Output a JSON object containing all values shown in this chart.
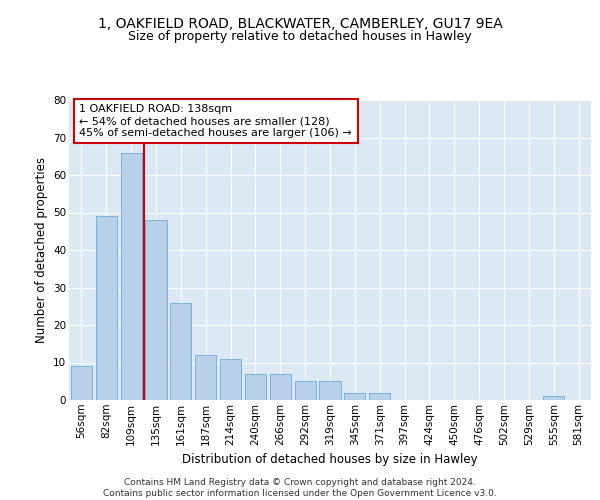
{
  "title_line1": "1, OAKFIELD ROAD, BLACKWATER, CAMBERLEY, GU17 9EA",
  "title_line2": "Size of property relative to detached houses in Hawley",
  "xlabel": "Distribution of detached houses by size in Hawley",
  "ylabel": "Number of detached properties",
  "categories": [
    "56sqm",
    "82sqm",
    "109sqm",
    "135sqm",
    "161sqm",
    "187sqm",
    "214sqm",
    "240sqm",
    "266sqm",
    "292sqm",
    "319sqm",
    "345sqm",
    "371sqm",
    "397sqm",
    "424sqm",
    "450sqm",
    "476sqm",
    "502sqm",
    "529sqm",
    "555sqm",
    "581sqm"
  ],
  "values": [
    9,
    49,
    66,
    48,
    26,
    12,
    11,
    7,
    7,
    5,
    5,
    2,
    2,
    0,
    0,
    0,
    0,
    0,
    0,
    1,
    0
  ],
  "bar_color": "#b8d0ea",
  "bar_edge_color": "#6aaed6",
  "annotation_text": "1 OAKFIELD ROAD: 138sqm\n← 54% of detached houses are smaller (128)\n45% of semi-detached houses are larger (106) →",
  "annotation_box_color": "white",
  "annotation_box_edge_color": "#cc0000",
  "red_line_x": 2.5,
  "ylim": [
    0,
    80
  ],
  "yticks": [
    0,
    10,
    20,
    30,
    40,
    50,
    60,
    70,
    80
  ],
  "background_color": "#dce9f5",
  "grid_color": "#ffffff",
  "footer_text": "Contains HM Land Registry data © Crown copyright and database right 2024.\nContains public sector information licensed under the Open Government Licence v3.0.",
  "title_fontsize": 10,
  "subtitle_fontsize": 9,
  "axis_label_fontsize": 8.5,
  "tick_fontsize": 7.5,
  "footer_fontsize": 6.5
}
